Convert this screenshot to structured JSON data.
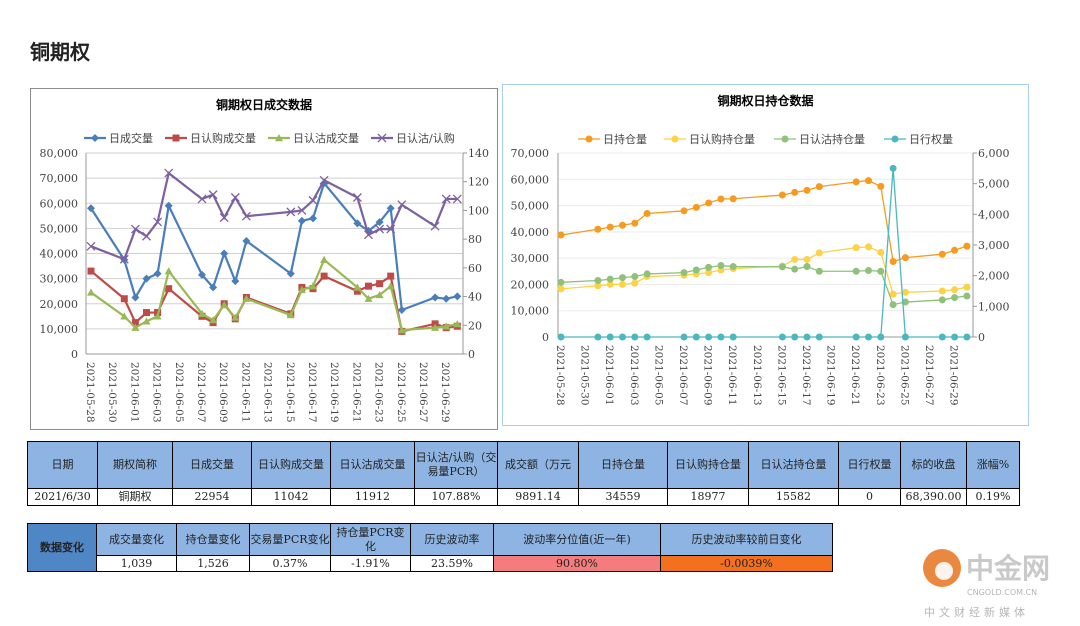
{
  "page_title": "铜期权",
  "chart_data": [
    {
      "type": "line",
      "title": "铜期权日成交数据",
      "x": [
        "2021-05-28",
        "2021-05-31",
        "2021-06-01",
        "2021-06-02",
        "2021-06-03",
        "2021-06-04",
        "2021-06-07",
        "2021-06-08",
        "2021-06-09",
        "2021-06-10",
        "2021-06-11",
        "2021-06-15",
        "2021-06-16",
        "2021-06-17",
        "2021-06-18",
        "2021-06-21",
        "2021-06-22",
        "2021-06-23",
        "2021-06-24",
        "2021-06-25",
        "2021-06-28",
        "2021-06-29",
        "2021-06-30"
      ],
      "x_ticks": [
        "2021-05-28",
        "2021-05-30",
        "2021-06-01",
        "2021-06-03",
        "2021-06-05",
        "2021-06-07",
        "2021-06-09",
        "2021-06-11",
        "2021-06-13",
        "2021-06-15",
        "2021-06-17",
        "2021-06-19",
        "2021-06-21",
        "2021-06-23",
        "2021-06-25",
        "2021-06-27",
        "2021-06-29"
      ],
      "ylim": [
        0,
        80000
      ],
      "y_ticks": [
        "0",
        "10,000",
        "20,000",
        "30,000",
        "40,000",
        "50,000",
        "60,000",
        "70,000",
        "80,000"
      ],
      "y2lim": [
        0,
        140
      ],
      "y2_ticks": [
        "0",
        "20",
        "40",
        "60",
        "80",
        "100",
        "120",
        "140"
      ],
      "grid": true,
      "legend": "top",
      "series": [
        {
          "name": "日成交量",
          "axis": "left",
          "color": "#4a7ebb",
          "marker": "diamond",
          "values": [
            58000,
            37500,
            22500,
            30000,
            32000,
            59000,
            31500,
            26500,
            40000,
            29000,
            45000,
            32000,
            53000,
            54000,
            68000,
            52000,
            49000,
            52500,
            58000,
            17500,
            22500,
            22000,
            22954
          ]
        },
        {
          "name": "日认购成交量",
          "axis": "left",
          "color": "#be4b48",
          "marker": "square",
          "values": [
            33000,
            22000,
            12500,
            16500,
            16500,
            26000,
            15000,
            12500,
            20000,
            14000,
            22500,
            16000,
            26500,
            26000,
            31000,
            25000,
            27000,
            28000,
            31000,
            9000,
            12000,
            10500,
            11042
          ]
        },
        {
          "name": "日认沽成交量",
          "axis": "left",
          "color": "#98b954",
          "marker": "triangle",
          "values": [
            24500,
            15000,
            10500,
            13000,
            15000,
            33000,
            16000,
            13500,
            19500,
            14500,
            22000,
            15500,
            25500,
            27000,
            37500,
            26500,
            22000,
            23500,
            27000,
            9500,
            10500,
            11000,
            11912
          ]
        },
        {
          "name": "日认沽/认购",
          "axis": "right",
          "color": "#7d60a0",
          "marker": "x",
          "values": [
            75,
            66,
            87,
            82,
            92,
            126,
            108,
            111,
            95,
            109,
            96,
            99,
            100,
            107,
            121,
            109,
            83,
            87,
            87,
            104,
            89,
            108,
            108
          ]
        }
      ]
    },
    {
      "type": "line",
      "title": "铜期权日持仓数据",
      "x": [
        "2021-05-28",
        "2021-05-31",
        "2021-06-01",
        "2021-06-02",
        "2021-06-03",
        "2021-06-04",
        "2021-06-07",
        "2021-06-08",
        "2021-06-09",
        "2021-06-10",
        "2021-06-11",
        "2021-06-15",
        "2021-06-16",
        "2021-06-17",
        "2021-06-18",
        "2021-06-21",
        "2021-06-22",
        "2021-06-23",
        "2021-06-24",
        "2021-06-25",
        "2021-06-28",
        "2021-06-29",
        "2021-06-30"
      ],
      "x_ticks": [
        "2021-05-28",
        "2021-05-30",
        "2021-06-01",
        "2021-06-03",
        "2021-06-05",
        "2021-06-07",
        "2021-06-09",
        "2021-06-11",
        "2021-06-13",
        "2021-06-15",
        "2021-06-17",
        "2021-06-19",
        "2021-06-21",
        "2021-06-23",
        "2021-06-25",
        "2021-06-27",
        "2021-06-29"
      ],
      "ylim": [
        0,
        70000
      ],
      "y_ticks": [
        "0",
        "10,000",
        "20,000",
        "30,000",
        "40,000",
        "50,000",
        "60,000",
        "70,000"
      ],
      "y2lim": [
        0,
        6000
      ],
      "y2_ticks": [
        "0",
        "1,000",
        "2,000",
        "3,000",
        "4,000",
        "5,000",
        "6,000"
      ],
      "grid": true,
      "legend": "top",
      "series": [
        {
          "name": "日持仓量",
          "axis": "left",
          "color": "#f79a1e",
          "marker": "circle",
          "values": [
            38800,
            41000,
            41800,
            42500,
            43300,
            47000,
            48000,
            49300,
            51000,
            52500,
            52600,
            54000,
            55000,
            55800,
            57200,
            59000,
            59500,
            57300,
            28700,
            30200,
            31500,
            33000,
            34559
          ]
        },
        {
          "name": "日认购持仓量",
          "axis": "left",
          "color": "#fdd245",
          "marker": "circle",
          "values": [
            18300,
            19500,
            20000,
            20000,
            20500,
            23000,
            23500,
            24000,
            24500,
            25500,
            26000,
            27000,
            29500,
            29500,
            32000,
            34000,
            34300,
            32200,
            16300,
            17000,
            17500,
            18000,
            18977
          ]
        },
        {
          "name": "日认沽持仓量",
          "axis": "left",
          "color": "#8fc17a",
          "marker": "circle",
          "values": [
            20800,
            21500,
            22000,
            22600,
            23000,
            24000,
            24500,
            25500,
            26500,
            27200,
            26800,
            26700,
            25800,
            26800,
            25000,
            25000,
            25300,
            25000,
            12300,
            13300,
            14100,
            15000,
            15582
          ]
        },
        {
          "name": "日行权量",
          "axis": "right",
          "color": "#4bb8c0",
          "marker": "circle",
          "values": [
            0,
            0,
            0,
            0,
            0,
            0,
            0,
            0,
            0,
            0,
            0,
            0,
            0,
            0,
            0,
            0,
            0,
            0,
            5500,
            0,
            0,
            0,
            0
          ]
        }
      ]
    }
  ],
  "table1": {
    "headers": [
      "日期",
      "期权简称",
      "日成交量",
      "日认购成交量",
      "日认沽成交量",
      "日认沽/认购（交易量PCR）",
      "成交额（万元",
      "日持仓量",
      "日认购持仓量",
      "日认沽持仓量",
      "日行权量",
      "标的收盘",
      "涨幅%"
    ],
    "values": [
      "2021/6/30",
      "铜期权",
      "22954",
      "11042",
      "11912",
      "107.88%",
      "9891.14",
      "34559",
      "18977",
      "15582",
      "0",
      "68,390.00",
      "0.19%"
    ]
  },
  "table2": {
    "label": "数据变化",
    "headers": [
      "成交量变化",
      "持仓量变化",
      "交易量PCR变化",
      "持仓量PCR变化",
      "历史波动率",
      "波动率分位值(近一年)",
      "历史波动率较前日变化"
    ],
    "values": [
      "1,039",
      "1,526",
      "0.37%",
      "-1.91%",
      "23.59%",
      "90.80%",
      "-0.0039%"
    ],
    "colors": {
      "percentile": "#f47c7c",
      "change": "#f2701e"
    }
  },
  "logo": {
    "name": "中金网",
    "domain": "CNGOLD.COM.CN",
    "slogan": "中文财经新媒体"
  }
}
